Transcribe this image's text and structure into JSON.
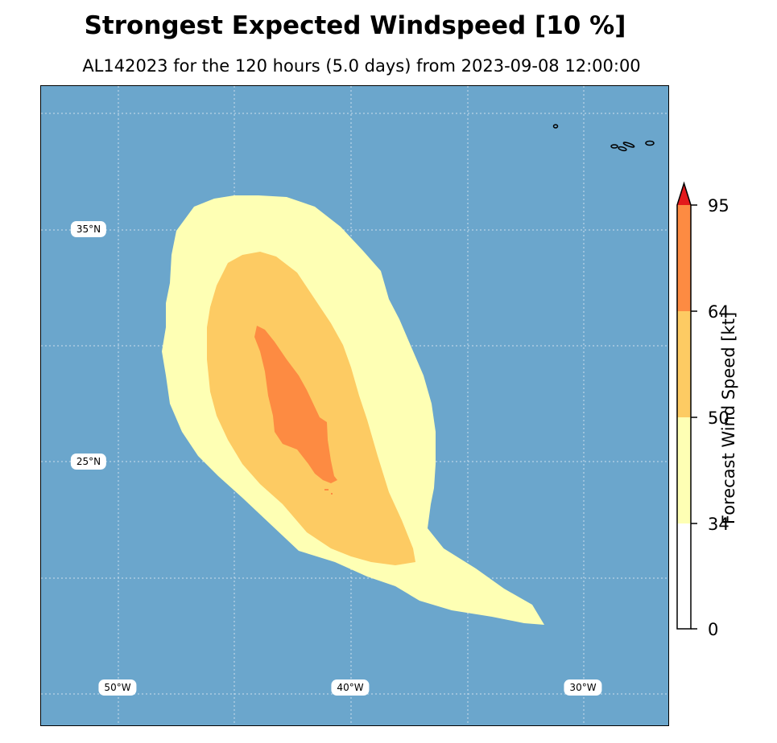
{
  "title": "Strongest Expected Windspeed [10 %]",
  "subtitle": "AL142023 for the 120 hours (5.0 days) from 2023-09-08 12:00:00",
  "map": {
    "ocean_color": "#6ba6cc",
    "lat_labels": [
      "35°N",
      "25°N"
    ],
    "lon_labels": [
      "50°W",
      "40°W",
      "30°W"
    ],
    "wind_regions": [
      {
        "range": "34-50 kt",
        "color": "#feffb4"
      },
      {
        "range": "50-64 kt",
        "color": "#fdcb63"
      },
      {
        "range": "64-95 kt",
        "color": "#fd8b42"
      }
    ]
  },
  "colorbar": {
    "label": "Forecast Wind Speed [kt]",
    "ticks": [
      "0",
      "34",
      "50",
      "64",
      "95"
    ],
    "segments": [
      {
        "from": 0,
        "to": 34,
        "color": "#ffffff"
      },
      {
        "from": 34,
        "to": 50,
        "color": "#feffb4"
      },
      {
        "from": 50,
        "to": 64,
        "color": "#fdcb63"
      },
      {
        "from": 64,
        "to": 95,
        "color": "#fd8b42"
      }
    ],
    "extend_max_color": "#e31a1c"
  }
}
